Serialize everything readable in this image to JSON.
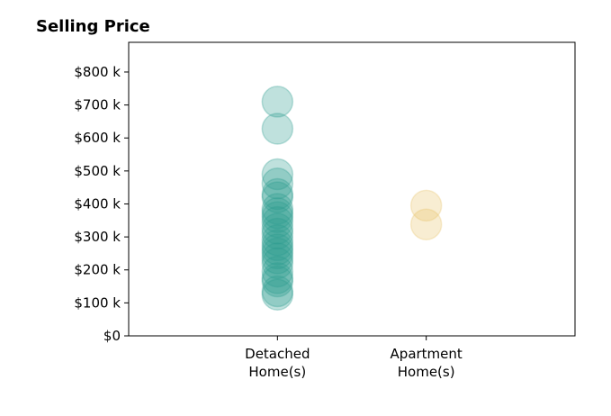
{
  "chart_data": {
    "type": "scatter",
    "title": "Selling Price",
    "xlabel": "",
    "ylabel": "",
    "categories": [
      "Detached\nHome(s)",
      "Apartment\nHome(s)"
    ],
    "xlim": [
      0,
      3
    ],
    "ylim": [
      0,
      890
    ],
    "y_ticks": [
      {
        "value": 0,
        "label": "$0"
      },
      {
        "value": 100,
        "label": "$100 k"
      },
      {
        "value": 200,
        "label": "$200 k"
      },
      {
        "value": 300,
        "label": "$300 k"
      },
      {
        "value": 400,
        "label": "$400 k"
      },
      {
        "value": 500,
        "label": "$500 k"
      },
      {
        "value": 600,
        "label": "$600 k"
      },
      {
        "value": 700,
        "label": "$700 k"
      },
      {
        "value": 800,
        "label": "$800 k"
      }
    ],
    "grid": false,
    "series": [
      {
        "category": "Detached\nHome(s)",
        "color": "#2a9d8f",
        "opacity": 0.3,
        "values": [
          710,
          628,
          490,
          462,
          430,
          420,
          385,
          372,
          360,
          345,
          325,
          310,
          290,
          275,
          262,
          250,
          235,
          220,
          195,
          175,
          165,
          135,
          125
        ]
      },
      {
        "category": "Apartment\nHome(s)",
        "color": "#e9c46a",
        "opacity": 0.3,
        "values": [
          395,
          338
        ]
      }
    ]
  }
}
